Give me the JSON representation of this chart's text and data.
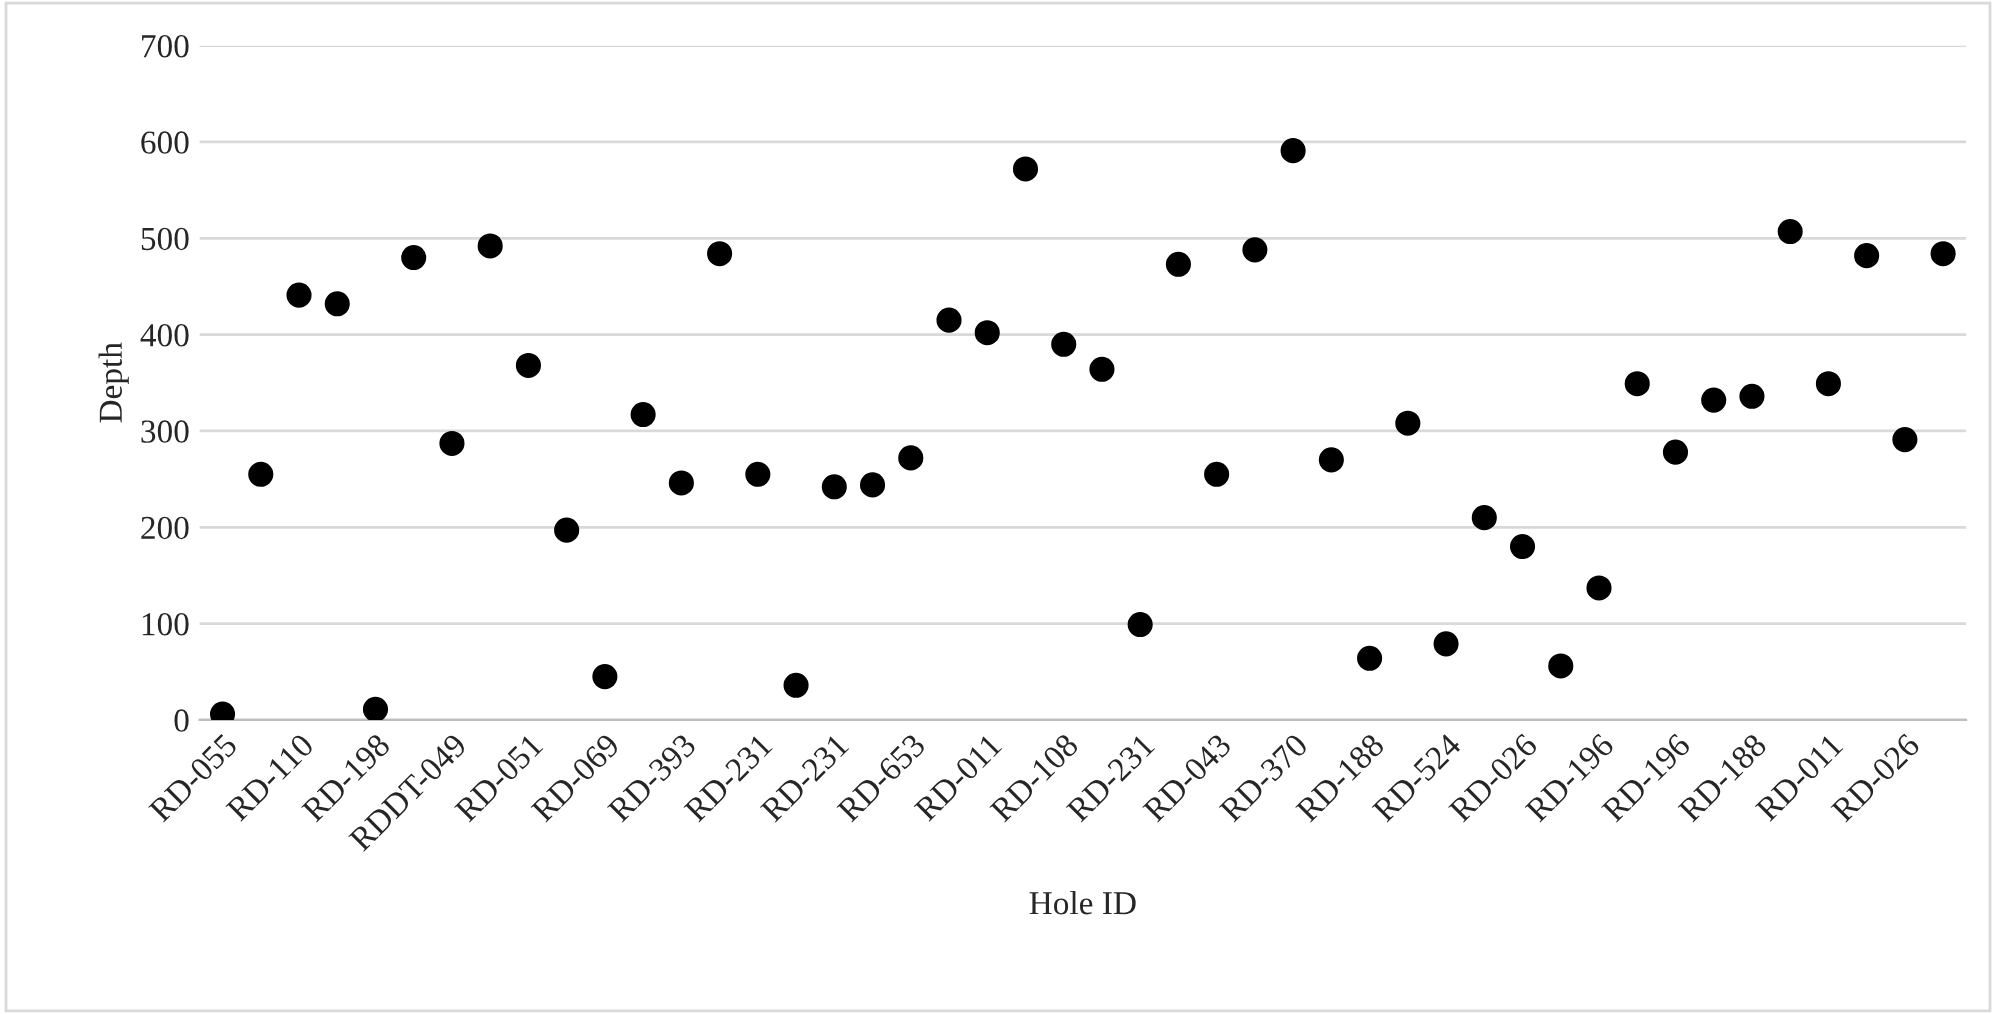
{
  "chart_data": {
    "type": "scatter",
    "xlabel": "Hole ID",
    "ylabel": "Depth",
    "categories": [
      "RD-055",
      null,
      "RD-110",
      null,
      "RD-198",
      null,
      "RDDT-049",
      null,
      "RD-051",
      null,
      "RD-069",
      null,
      "RD-393",
      null,
      "RD-231",
      null,
      "RD-231",
      null,
      "RD-653",
      null,
      "RD-011",
      null,
      "RD-108",
      null,
      "RD-231",
      null,
      "RD-043",
      null,
      "RD-370",
      null,
      "RD-188",
      null,
      "RD-524",
      null,
      "RD-026",
      null,
      "RD-196",
      null,
      "RD-196",
      null,
      "RD-188",
      null,
      "RD-011",
      null,
      "RD-026",
      null
    ],
    "series": [
      {
        "color": "#000000",
        "values": [
          6,
          255,
          441,
          432,
          11,
          480,
          287,
          492,
          368,
          197,
          45,
          317,
          246,
          484,
          255,
          36,
          242,
          244,
          272,
          415,
          402,
          572,
          390,
          364,
          99,
          473,
          255,
          488,
          591,
          270,
          64,
          308,
          79,
          210,
          180,
          56,
          137,
          349,
          278,
          332,
          336,
          507,
          349,
          482,
          291,
          484
        ]
      }
    ],
    "ylim": [
      0,
      700
    ],
    "yticks": [
      0,
      100,
      200,
      300,
      400,
      500,
      600,
      700
    ],
    "grid": "y",
    "legend": false,
    "marker": "circle"
  }
}
